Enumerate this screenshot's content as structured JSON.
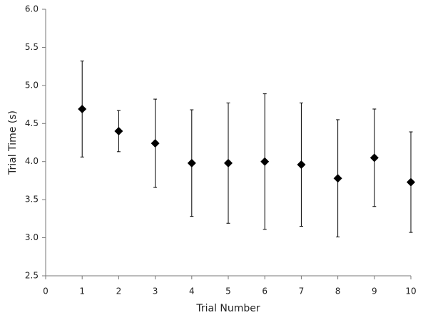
{
  "chart_data": {
    "type": "scatter",
    "x_label": "Trial Number",
    "y_label": "Trial Time (s)",
    "x": [
      1,
      2,
      3,
      4,
      5,
      6,
      7,
      8,
      9,
      10
    ],
    "values": [
      4.69,
      4.4,
      4.24,
      3.98,
      3.98,
      4.0,
      3.96,
      3.78,
      4.05,
      3.73
    ],
    "errors": [
      0.63,
      0.27,
      0.58,
      0.7,
      0.79,
      0.89,
      0.81,
      0.77,
      0.64,
      0.66
    ],
    "color": "#000000",
    "xlim": [
      0,
      10
    ],
    "xticks": [
      0,
      1,
      2,
      3,
      4,
      5,
      6,
      7,
      8,
      9,
      10
    ],
    "ylim": [
      2.5,
      6
    ],
    "yticks": [
      2.5,
      {
        "value": 3,
        "label": "3.0"
      },
      3.5,
      {
        "value": 4,
        "label": "4.0"
      },
      4.5,
      {
        "value": 5,
        "label": "5.0"
      },
      5.5,
      {
        "value": 6,
        "label": "6.0"
      }
    ],
    "grid": false
  }
}
